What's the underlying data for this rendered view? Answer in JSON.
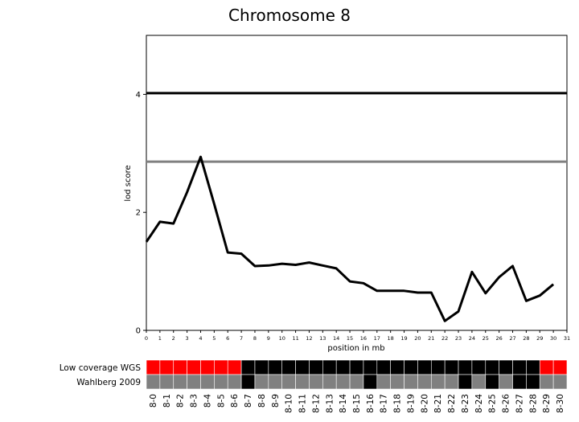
{
  "chart_data": {
    "type": "line",
    "title": "Chromosome 8",
    "xlabel": "position in mb",
    "ylabel": "lod score",
    "xlim": [
      0,
      31
    ],
    "ylim": [
      0,
      5
    ],
    "xticks": [
      0,
      1,
      2,
      3,
      4,
      5,
      6,
      7,
      8,
      9,
      10,
      11,
      12,
      13,
      14,
      15,
      16,
      17,
      18,
      19,
      20,
      21,
      22,
      23,
      24,
      25,
      26,
      27,
      28,
      29,
      30,
      31
    ],
    "yticks": [
      0,
      2,
      4
    ],
    "thresholds": [
      {
        "y": 4.02,
        "color": "#000000"
      },
      {
        "y": 2.86,
        "color": "#808080"
      }
    ],
    "series": [
      {
        "color": "#000000",
        "x": [
          0,
          1,
          2,
          3,
          4,
          5,
          6,
          7,
          8,
          9,
          10,
          11,
          12,
          13,
          14,
          15,
          16,
          17,
          18,
          19,
          20,
          21,
          22,
          23,
          24,
          25,
          26,
          27,
          28,
          29,
          30
        ],
        "y": [
          1.5,
          1.84,
          1.81,
          2.34,
          2.94,
          2.14,
          1.32,
          1.3,
          1.09,
          1.1,
          1.13,
          1.11,
          1.15,
          1.1,
          1.05,
          0.83,
          0.8,
          0.67,
          0.67,
          0.67,
          0.64,
          0.64,
          0.16,
          0.32,
          0.99,
          0.63,
          0.9,
          1.09,
          0.5,
          0.59,
          0.78
        ]
      }
    ],
    "grid": false,
    "legend": "none"
  },
  "tracks": {
    "labels": [
      "Low coverage WGS",
      "Wahlberg 2009"
    ],
    "colors": {
      "red": "#ff0000",
      "black": "#000000",
      "grey": "#808080"
    },
    "categories": [
      "8-0",
      "8-1",
      "8-2",
      "8-3",
      "8-4",
      "8-5",
      "8-6",
      "8-7",
      "8-8",
      "8-9",
      "8-10",
      "8-11",
      "8-12",
      "8-13",
      "8-14",
      "8-15",
      "8-16",
      "8-17",
      "8-18",
      "8-19",
      "8-20",
      "8-21",
      "8-22",
      "8-23",
      "8-24",
      "8-25",
      "8-26",
      "8-27",
      "8-28",
      "8-29",
      "8-30"
    ],
    "rows": [
      [
        "red",
        "red",
        "red",
        "red",
        "red",
        "red",
        "red",
        "black",
        "black",
        "black",
        "black",
        "black",
        "black",
        "black",
        "black",
        "black",
        "black",
        "black",
        "black",
        "black",
        "black",
        "black",
        "black",
        "black",
        "black",
        "black",
        "black",
        "black",
        "black",
        "red",
        "red"
      ],
      [
        "grey",
        "grey",
        "grey",
        "grey",
        "grey",
        "grey",
        "grey",
        "black",
        "grey",
        "grey",
        "grey",
        "grey",
        "grey",
        "grey",
        "grey",
        "grey",
        "black",
        "grey",
        "grey",
        "grey",
        "grey",
        "grey",
        "grey",
        "black",
        "grey",
        "black",
        "grey",
        "black",
        "black",
        "grey",
        "grey"
      ]
    ]
  }
}
